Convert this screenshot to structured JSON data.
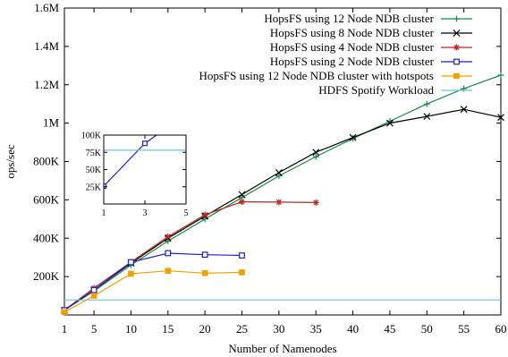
{
  "chart_data": [
    {
      "type": "line",
      "title": "",
      "xlabel": "Number of Namenodes",
      "ylabel": "ops/sec",
      "xlim": [
        1,
        60
      ],
      "ylim": [
        0,
        1600000
      ],
      "x_ticks": [
        1,
        5,
        10,
        15,
        20,
        25,
        30,
        35,
        40,
        45,
        50,
        55,
        60
      ],
      "x_tick_labels": [
        "1",
        "5",
        "10",
        "15",
        "20",
        "25",
        "30",
        "35",
        "40",
        "45",
        "50",
        "55",
        "60"
      ],
      "y_ticks": [
        200000,
        400000,
        600000,
        800000,
        1000000,
        1200000,
        1400000,
        1600000
      ],
      "y_tick_labels": [
        "200K",
        "400K",
        "600K",
        "800K",
        "1M",
        "1.2M",
        "1.4M",
        "1.6M"
      ],
      "legend_position": "top-right",
      "grid": false,
      "series": [
        {
          "name": "HopsFS using 12 Node NDB cluster",
          "color": "#1a8a4a",
          "marker": "plus",
          "x": [
            1,
            5,
            10,
            15,
            20,
            25,
            30,
            35,
            40,
            45,
            50,
            55,
            60
          ],
          "y": [
            25000,
            125000,
            260000,
            385000,
            500000,
            612000,
            725000,
            825000,
            920000,
            1010000,
            1100000,
            1180000,
            1250000
          ]
        },
        {
          "name": "HopsFS using 8 Node NDB cluster",
          "color": "#000000",
          "marker": "cross",
          "x": [
            1,
            5,
            10,
            15,
            20,
            25,
            30,
            35,
            40,
            45,
            50,
            55,
            60
          ],
          "y": [
            25000,
            130000,
            270000,
            400000,
            515000,
            628000,
            742000,
            848000,
            925000,
            1000000,
            1035000,
            1072000,
            1030000
          ]
        },
        {
          "name": "HopsFS using 4 Node NDB cluster",
          "color": "#b22a1e",
          "marker": "star",
          "x": [
            1,
            5,
            10,
            15,
            20,
            25,
            30,
            35
          ],
          "y": [
            25000,
            140000,
            275000,
            408000,
            522000,
            590000,
            588000,
            586000
          ]
        },
        {
          "name": "HopsFS using 2 Node NDB cluster",
          "color": "#1f1fd0",
          "marker": "square-open",
          "x": [
            1,
            5,
            10,
            15,
            20,
            25
          ],
          "y": [
            25000,
            130000,
            275000,
            322000,
            314000,
            310000
          ]
        },
        {
          "name": "HopsFS using 12 Node NDB cluster with hotspots",
          "color": "#f0a000",
          "marker": "square-filled",
          "x": [
            1,
            5,
            10,
            15,
            20,
            25
          ],
          "y": [
            15000,
            100000,
            215000,
            230000,
            218000,
            222000
          ]
        },
        {
          "name": "HDFS Spotify Workload",
          "color": "#6cc6d6",
          "marker": "none",
          "x": [
            1,
            60
          ],
          "y": [
            78000,
            78000
          ]
        }
      ]
    },
    {
      "type": "line",
      "title": "",
      "xlabel": "",
      "ylabel": "",
      "xlim": [
        1,
        5
      ],
      "ylim": [
        0,
        100000
      ],
      "x_ticks": [
        1,
        3,
        5
      ],
      "x_tick_labels": [
        "1",
        "3",
        "5"
      ],
      "y_ticks": [
        25000,
        50000,
        75000,
        100000
      ],
      "y_tick_labels": [
        "25K",
        "50K",
        "75K",
        "100K"
      ],
      "series": [
        {
          "name": "HopsFS using 2 Node NDB cluster",
          "color": "#1f1fd0",
          "marker": "square-open",
          "x": [
            1,
            3,
            5
          ],
          "y": [
            26000,
            88000,
            130000
          ]
        },
        {
          "name": "HDFS Spotify Workload",
          "color": "#6cc6d6",
          "marker": "none",
          "x": [
            1,
            5
          ],
          "y": [
            78000,
            78000
          ]
        }
      ]
    }
  ]
}
